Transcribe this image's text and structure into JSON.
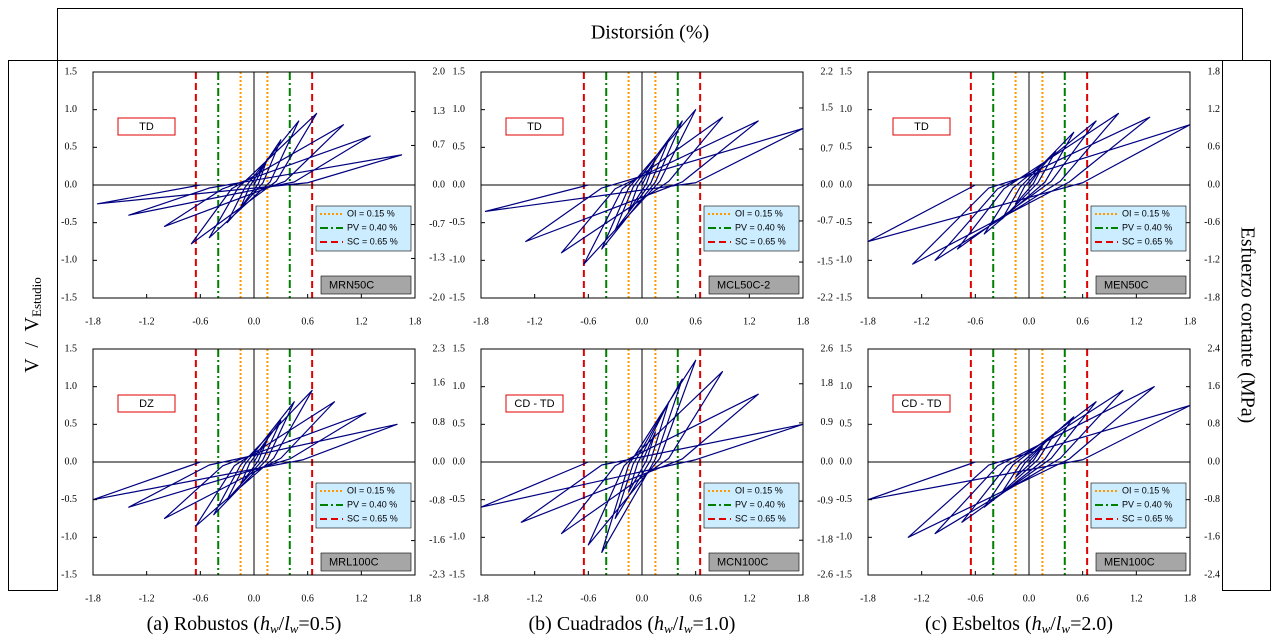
{
  "header": "Distorsión (%)",
  "left_label": {
    "v": "V",
    "slash": "/",
    "v2": "V",
    "sub": "Estudio"
  },
  "right_label": "Esfuerzo cortante (MPa)",
  "captions": [
    [
      "(a) Robustos (",
      "h",
      "w",
      "/",
      "l",
      "w",
      "=0.5)"
    ],
    [
      "(b) Cuadrados (",
      "h",
      "w",
      "/",
      "l",
      "w",
      "=1.0)"
    ],
    [
      "(c) Esbeltos (",
      "h",
      "w",
      "/",
      "l",
      "w",
      "=2.0)"
    ]
  ],
  "chart_data": [
    {
      "type": "line",
      "specimen": "MRN50C",
      "failure_mode": "TD",
      "xlim": [
        -1.8,
        1.8
      ],
      "xticks": [
        -1.8,
        -1.2,
        -0.6,
        {
          "value": 0,
          "label": "0.0"
        },
        0.6,
        1.2,
        1.8
      ],
      "ylim": [
        -1.5,
        1.5
      ],
      "yticks": [
        -1.5,
        {
          "value": -1,
          "label": "-1.0"
        },
        -0.5,
        {
          "value": 0,
          "label": "0.0"
        },
        0.5,
        {
          "value": 1,
          "label": "1.0"
        },
        1.5
      ],
      "y2lim": [
        -2,
        2
      ],
      "y2ticks": [
        {
          "value": -2,
          "label": "-2.0"
        },
        -1.3,
        -0.7,
        {
          "value": 0,
          "label": "0.0"
        },
        0.7,
        1.3,
        {
          "value": 2,
          "label": "2.0"
        }
      ],
      "curve": {
        "color": "#000080",
        "x": [
          0,
          0.15,
          0.05,
          -0.15,
          -0.05,
          0.3,
          0.1,
          -0.3,
          -0.1,
          0.5,
          0.18,
          -0.5,
          -0.18,
          0.7,
          0.25,
          -0.7,
          -0.25,
          1.0,
          0.35,
          -1.0,
          -0.35,
          1.3,
          0.45,
          -1.4,
          -0.5,
          1.65,
          0.6,
          -1.75,
          -0.6
        ],
        "y": [
          0,
          0.35,
          0.02,
          -0.3,
          -0.02,
          0.6,
          0.03,
          -0.5,
          -0.03,
          0.85,
          0.04,
          -0.7,
          -0.04,
          0.95,
          0.05,
          -0.78,
          -0.05,
          0.8,
          0.05,
          -0.55,
          -0.05,
          0.65,
          0.04,
          -0.4,
          -0.04,
          0.4,
          0.03,
          -0.25,
          0
        ]
      },
      "series": [
        {
          "name": "OI = 0.15 %",
          "color": "#ff9900",
          "dash": "dotted",
          "x": [
            -0.15,
            0.15
          ]
        },
        {
          "name": "PV = 0.40 %",
          "color": "#008000",
          "dash": "dash-dot",
          "x": [
            -0.4,
            0.4
          ]
        },
        {
          "name": "SC = 0.65 %",
          "color": "#e00000",
          "dash": "dashed",
          "x": [
            -0.65,
            0.65
          ]
        }
      ]
    },
    {
      "type": "line",
      "specimen": "MCL50C-2",
      "failure_mode": "TD",
      "xlim": [
        -1.8,
        1.8
      ],
      "xticks": [
        -1.8,
        -1.2,
        -0.6,
        {
          "value": 0,
          "label": "0.0"
        },
        0.6,
        1.2,
        1.8
      ],
      "ylim": [
        -1.5,
        1.5
      ],
      "yticks": [
        -1.5,
        {
          "value": -1,
          "label": "-1.0"
        },
        -0.5,
        {
          "value": 0,
          "label": "0.0"
        },
        0.5,
        {
          "value": 1,
          "label": "1.0"
        },
        1.5
      ],
      "y2lim": [
        -2.2,
        2.2
      ],
      "y2ticks": [
        -2.2,
        -1.5,
        -0.7,
        {
          "value": 0,
          "label": "0.0"
        },
        0.7,
        1.5,
        2.2
      ],
      "curve": {
        "color": "#000080",
        "x": [
          0,
          0.15,
          0.05,
          -0.15,
          -0.05,
          0.3,
          0.1,
          -0.3,
          -0.1,
          0.45,
          0.15,
          -0.45,
          -0.15,
          0.6,
          0.2,
          -0.65,
          -0.22,
          0.9,
          0.3,
          -0.9,
          -0.3,
          1.3,
          0.45,
          -1.3,
          -0.45,
          1.8,
          0.6,
          -1.75,
          -0.6
        ],
        "y": [
          0,
          0.35,
          0.02,
          -0.35,
          -0.02,
          0.6,
          0.03,
          -0.6,
          -0.03,
          0.85,
          0.04,
          -0.85,
          -0.04,
          1.0,
          0.05,
          -1.05,
          -0.05,
          0.9,
          0.05,
          -0.9,
          -0.05,
          0.85,
          0.04,
          -0.75,
          -0.04,
          0.75,
          0.03,
          -0.35,
          0
        ]
      },
      "series": [
        {
          "name": "OI = 0.15 %",
          "color": "#ff9900",
          "dash": "dotted",
          "x": [
            -0.15,
            0.15
          ]
        },
        {
          "name": "PV = 0.40 %",
          "color": "#008000",
          "dash": "dash-dot",
          "x": [
            -0.4,
            0.4
          ]
        },
        {
          "name": "SC = 0.65 %",
          "color": "#e00000",
          "dash": "dashed",
          "x": [
            -0.65,
            0.65
          ]
        }
      ]
    },
    {
      "type": "line",
      "specimen": "MEN50C",
      "failure_mode": "TD",
      "xlim": [
        -1.8,
        1.8
      ],
      "xticks": [
        -1.8,
        -1.2,
        -0.6,
        {
          "value": 0,
          "label": "0.0"
        },
        0.6,
        1.2,
        1.8
      ],
      "ylim": [
        -1.5,
        1.5
      ],
      "yticks": [
        -1.5,
        {
          "value": -1,
          "label": "-1.0"
        },
        -0.5,
        {
          "value": 0,
          "label": "0.0"
        },
        0.5,
        {
          "value": 1,
          "label": "1.0"
        },
        1.5
      ],
      "y2lim": [
        -1.8,
        1.8
      ],
      "y2ticks": [
        -1.8,
        -1.2,
        -0.6,
        {
          "value": 0,
          "label": "0.0"
        },
        0.6,
        1.2,
        1.8
      ],
      "curve": {
        "color": "#000080",
        "x": [
          0,
          0.15,
          0.05,
          -0.15,
          -0.05,
          0.3,
          0.1,
          -0.3,
          -0.1,
          0.5,
          0.18,
          -0.5,
          -0.18,
          0.75,
          0.25,
          -0.8,
          -0.28,
          1.0,
          0.35,
          -1.05,
          -0.35,
          1.35,
          0.45,
          -1.3,
          -0.45,
          1.8,
          0.6,
          -1.8,
          -0.6
        ],
        "y": [
          0,
          0.25,
          0.02,
          -0.25,
          -0.02,
          0.45,
          0.03,
          -0.45,
          -0.03,
          0.7,
          0.04,
          -0.65,
          -0.04,
          0.85,
          0.05,
          -0.85,
          -0.05,
          0.95,
          0.05,
          -1.0,
          -0.05,
          0.9,
          0.04,
          -1.05,
          -0.04,
          0.8,
          0.03,
          -0.75,
          0
        ]
      },
      "series": [
        {
          "name": "OI = 0.15 %",
          "color": "#ff9900",
          "dash": "dotted",
          "x": [
            -0.15,
            0.15
          ]
        },
        {
          "name": "PV = 0.40 %",
          "color": "#008000",
          "dash": "dash-dot",
          "x": [
            -0.4,
            0.4
          ]
        },
        {
          "name": "SC = 0.65 %",
          "color": "#e00000",
          "dash": "dashed",
          "x": [
            -0.65,
            0.65
          ]
        }
      ]
    },
    {
      "type": "line",
      "specimen": "MRL100C",
      "failure_mode": "DZ",
      "xlim": [
        -1.8,
        1.8
      ],
      "xticks": [
        -1.8,
        -1.2,
        -0.6,
        {
          "value": 0,
          "label": "0.0"
        },
        0.6,
        1.2,
        1.8
      ],
      "ylim": [
        -1.5,
        1.5
      ],
      "yticks": [
        -1.5,
        {
          "value": -1,
          "label": "-1.0"
        },
        -0.5,
        {
          "value": 0,
          "label": "0.0"
        },
        0.5,
        {
          "value": 1,
          "label": "1.0"
        },
        1.5
      ],
      "y2lim": [
        -2.3,
        2.3
      ],
      "y2ticks": [
        -2.3,
        -1.6,
        -0.8,
        {
          "value": 0,
          "label": "0.0"
        },
        0.8,
        1.6,
        2.3
      ],
      "curve": {
        "color": "#000080",
        "x": [
          0,
          0.15,
          0.05,
          -0.15,
          -0.05,
          0.3,
          0.1,
          -0.3,
          -0.1,
          0.45,
          0.15,
          -0.45,
          -0.15,
          0.65,
          0.22,
          -0.65,
          -0.22,
          0.9,
          0.3,
          -1.0,
          -0.35,
          1.25,
          0.4,
          -1.4,
          -0.5,
          1.6,
          0.55,
          -1.8,
          -0.6
        ],
        "y": [
          0,
          0.3,
          0.02,
          -0.3,
          -0.02,
          0.55,
          0.03,
          -0.5,
          -0.03,
          0.8,
          0.04,
          -0.7,
          -0.04,
          0.95,
          0.05,
          -0.85,
          -0.05,
          0.8,
          0.05,
          -0.75,
          -0.05,
          0.65,
          0.04,
          -0.6,
          -0.04,
          0.5,
          0.03,
          -0.5,
          0
        ]
      },
      "series": [
        {
          "name": "OI = 0.15 %",
          "color": "#ff9900",
          "dash": "dotted",
          "x": [
            -0.15,
            0.15
          ]
        },
        {
          "name": "PV = 0.40 %",
          "color": "#008000",
          "dash": "dash-dot",
          "x": [
            -0.4,
            0.4
          ]
        },
        {
          "name": "SC = 0.65 %",
          "color": "#e00000",
          "dash": "dashed",
          "x": [
            -0.65,
            0.65
          ]
        }
      ]
    },
    {
      "type": "line",
      "specimen": "MCN100C",
      "failure_mode": "CD - TD",
      "xlim": [
        -1.8,
        1.8
      ],
      "xticks": [
        -1.8,
        -1.2,
        -0.6,
        {
          "value": 0,
          "label": "0.0"
        },
        0.6,
        1.2,
        1.8
      ],
      "ylim": [
        -1.5,
        1.5
      ],
      "yticks": [
        -1.5,
        {
          "value": -1,
          "label": "-1.0"
        },
        -0.5,
        {
          "value": 0,
          "label": "0.0"
        },
        0.5,
        {
          "value": 1,
          "label": "1.0"
        },
        1.5
      ],
      "y2lim": [
        -2.6,
        2.6
      ],
      "y2ticks": [
        -2.6,
        -1.8,
        -0.9,
        {
          "value": 0,
          "label": "0.0"
        },
        0.9,
        1.8,
        2.6
      ],
      "curve": {
        "color": "#000080",
        "x": [
          0,
          0.15,
          0.05,
          -0.15,
          -0.05,
          0.3,
          0.1,
          -0.3,
          -0.1,
          0.45,
          0.15,
          -0.45,
          -0.15,
          0.6,
          0.2,
          -0.6,
          -0.2,
          0.9,
          0.3,
          -0.9,
          -0.3,
          1.3,
          0.45,
          -1.35,
          -0.45,
          1.8,
          0.6,
          -1.8,
          -0.6
        ],
        "y": [
          0,
          0.4,
          0.02,
          -0.4,
          -0.02,
          0.8,
          0.03,
          -0.75,
          -0.03,
          1.1,
          0.04,
          -1.2,
          -0.04,
          1.35,
          0.05,
          -1.1,
          -0.05,
          1.2,
          0.05,
          -0.95,
          -0.05,
          0.9,
          0.04,
          -0.8,
          -0.04,
          0.5,
          0.03,
          -0.6,
          0
        ]
      },
      "series": [
        {
          "name": "OI = 0.15 %",
          "color": "#ff9900",
          "dash": "dotted",
          "x": [
            -0.15,
            0.15
          ]
        },
        {
          "name": "PV = 0.40 %",
          "color": "#008000",
          "dash": "dash-dot",
          "x": [
            -0.4,
            0.4
          ]
        },
        {
          "name": "SC = 0.65 %",
          "color": "#e00000",
          "dash": "dashed",
          "x": [
            -0.65,
            0.65
          ]
        }
      ]
    },
    {
      "type": "line",
      "specimen": "MEN100C",
      "failure_mode": "CD - TD",
      "xlim": [
        -1.8,
        1.8
      ],
      "xticks": [
        -1.8,
        -1.2,
        -0.6,
        {
          "value": 0,
          "label": "0.0"
        },
        0.6,
        1.2,
        1.8
      ],
      "ylim": [
        -1.5,
        1.5
      ],
      "yticks": [
        -1.5,
        {
          "value": -1,
          "label": "-1.0"
        },
        -0.5,
        {
          "value": 0,
          "label": "0.0"
        },
        0.5,
        {
          "value": 1,
          "label": "1.0"
        },
        1.5
      ],
      "y2lim": [
        -2.4,
        2.4
      ],
      "y2ticks": [
        -2.4,
        -1.6,
        -0.8,
        {
          "value": 0,
          "label": "0.0"
        },
        0.8,
        1.6,
        2.4
      ],
      "curve": {
        "color": "#000080",
        "x": [
          0,
          0.15,
          0.05,
          -0.15,
          -0.05,
          0.3,
          0.1,
          -0.3,
          -0.1,
          0.5,
          0.18,
          -0.5,
          -0.18,
          0.75,
          0.25,
          -0.75,
          -0.25,
          1.05,
          0.35,
          -1.05,
          -0.35,
          1.4,
          0.45,
          -1.35,
          -0.45,
          1.8,
          0.6,
          -1.8,
          -0.6
        ],
        "y": [
          0,
          0.2,
          0.02,
          -0.2,
          -0.02,
          0.4,
          0.03,
          -0.4,
          -0.03,
          0.6,
          0.04,
          -0.6,
          -0.04,
          0.8,
          0.05,
          -0.8,
          -0.05,
          0.95,
          0.05,
          -0.95,
          -0.05,
          1.0,
          0.04,
          -1.0,
          -0.04,
          0.75,
          0.03,
          -0.5,
          0
        ]
      },
      "series": [
        {
          "name": "OI = 0.15 %",
          "color": "#ff9900",
          "dash": "dotted",
          "x": [
            -0.15,
            0.15
          ]
        },
        {
          "name": "PV = 0.40 %",
          "color": "#008000",
          "dash": "dash-dot",
          "x": [
            -0.4,
            0.4
          ]
        },
        {
          "name": "SC = 0.65 %",
          "color": "#e00000",
          "dash": "dashed",
          "x": [
            -0.65,
            0.65
          ]
        }
      ]
    }
  ]
}
